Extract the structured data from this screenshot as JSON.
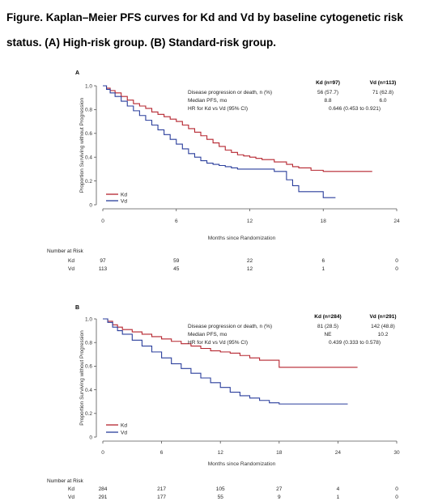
{
  "figure_title": "Figure. Kaplan–Meier PFS curves for Kd and Vd by baseline cytogenetic risk status. (A) High-risk group. (B) Standard-risk group.",
  "colors": {
    "kd": "#b5242e",
    "vd": "#2a3e9c",
    "axis": "#555555"
  },
  "chart_data": [
    {
      "type": "line",
      "panel_label": "A",
      "title": "",
      "xlabel": "Months since Randomization",
      "ylabel": "Proportion Surviving without Progression",
      "xlim": [
        0,
        24
      ],
      "ylim": [
        0,
        1.0
      ],
      "x_ticks": [
        "0",
        "6",
        "12",
        "18",
        "24"
      ],
      "y_ticks": [
        "0",
        "0.2",
        "0.4",
        "0.6",
        "0.8",
        "1.0"
      ],
      "grid": false,
      "legend": {
        "position": "bottom-left",
        "entries": [
          "Kd",
          "Vd"
        ]
      },
      "stats_table": {
        "col_headers": [
          "Kd (n=97)",
          "Vd (n=113)"
        ],
        "rows": [
          {
            "label": "Disease progression or death, n (%)",
            "kd": "56 (57.7)",
            "vd": "71 (62.8)"
          },
          {
            "label": "Median PFS, mo",
            "kd": "8.8",
            "vd": "6.0"
          },
          {
            "label": "HR for Kd vs Vd (95% CI)",
            "span": "0.646 (0.453 to 0.921)"
          }
        ]
      },
      "series": [
        {
          "name": "Kd",
          "step": true,
          "x": [
            0,
            0.3,
            0.6,
            1.0,
            1.5,
            2.0,
            2.5,
            3.0,
            3.5,
            4.0,
            4.5,
            5.0,
            5.5,
            6.0,
            6.5,
            7.0,
            7.5,
            8.0,
            8.5,
            9.0,
            9.5,
            10.0,
            10.5,
            11.0,
            11.5,
            12.0,
            12.5,
            13.0,
            14.0,
            15.0,
            15.5,
            16.0,
            17.0,
            18.0,
            19.0,
            20.0,
            21.0,
            22.0
          ],
          "y": [
            1.0,
            0.98,
            0.96,
            0.94,
            0.91,
            0.88,
            0.85,
            0.83,
            0.81,
            0.78,
            0.76,
            0.74,
            0.72,
            0.7,
            0.67,
            0.64,
            0.61,
            0.58,
            0.55,
            0.52,
            0.49,
            0.46,
            0.44,
            0.42,
            0.41,
            0.4,
            0.39,
            0.38,
            0.36,
            0.34,
            0.32,
            0.31,
            0.29,
            0.28,
            0.28,
            0.28,
            0.28,
            0.28
          ]
        },
        {
          "name": "Vd",
          "step": true,
          "x": [
            0,
            0.3,
            0.6,
            1.0,
            1.5,
            2.0,
            2.5,
            3.0,
            3.5,
            4.0,
            4.5,
            5.0,
            5.5,
            6.0,
            6.5,
            7.0,
            7.5,
            8.0,
            8.5,
            9.0,
            9.5,
            10.0,
            10.5,
            11.0,
            12.0,
            13.0,
            14.0,
            15.0,
            15.5,
            16.0,
            17.0,
            18.0,
            19.0
          ],
          "y": [
            1.0,
            0.97,
            0.94,
            0.91,
            0.87,
            0.83,
            0.79,
            0.75,
            0.71,
            0.67,
            0.63,
            0.59,
            0.55,
            0.51,
            0.47,
            0.43,
            0.4,
            0.37,
            0.35,
            0.34,
            0.33,
            0.32,
            0.31,
            0.3,
            0.3,
            0.3,
            0.28,
            0.21,
            0.16,
            0.11,
            0.11,
            0.06,
            0.06
          ]
        }
      ],
      "number_at_risk": {
        "heading": "Number at Risk",
        "rows": [
          {
            "label": "Kd",
            "values": [
              "97",
              "59",
              "22",
              "6",
              "0"
            ]
          },
          {
            "label": "Vd",
            "values": [
              "113",
              "45",
              "12",
              "1",
              "0"
            ]
          }
        ]
      }
    },
    {
      "type": "line",
      "panel_label": "B",
      "title": "",
      "xlabel": "Months since Randomization",
      "ylabel": "Proportion Surviving without Progression",
      "xlim": [
        0,
        30
      ],
      "ylim": [
        0,
        1.0
      ],
      "x_ticks": [
        "0",
        "6",
        "12",
        "18",
        "24",
        "30"
      ],
      "y_ticks": [
        "0",
        "0.2",
        "0.4",
        "0.6",
        "0.8",
        "1.0"
      ],
      "grid": false,
      "legend": {
        "position": "bottom-left",
        "entries": [
          "Kd",
          "Vd"
        ]
      },
      "stats_table": {
        "col_headers": [
          "Kd (n=284)",
          "Vd (n=291)"
        ],
        "rows": [
          {
            "label": "Disease progression or death, n (%)",
            "kd": "81 (28.5)",
            "vd": "142 (48.8)"
          },
          {
            "label": "Median PFS, mo",
            "kd": "NE",
            "vd": "10.2"
          },
          {
            "label": "HR for Kd vs Vd (95% CI)",
            "span": "0.439 (0.333 to 0.578)"
          }
        ]
      },
      "series": [
        {
          "name": "Kd",
          "step": true,
          "x": [
            0,
            0.5,
            1.0,
            1.5,
            2.0,
            3.0,
            4.0,
            5.0,
            6.0,
            7.0,
            8.0,
            9.0,
            10.0,
            11.0,
            12.0,
            13.0,
            14.0,
            15.0,
            16.0,
            17.0,
            18.0,
            19.0,
            20.0,
            22.0,
            24.0,
            26.0
          ],
          "y": [
            1.0,
            0.98,
            0.95,
            0.93,
            0.91,
            0.89,
            0.87,
            0.85,
            0.83,
            0.81,
            0.79,
            0.77,
            0.75,
            0.73,
            0.72,
            0.71,
            0.69,
            0.67,
            0.65,
            0.65,
            0.59,
            0.59,
            0.59,
            0.59,
            0.59,
            0.59
          ]
        },
        {
          "name": "Vd",
          "step": true,
          "x": [
            0,
            0.5,
            1.0,
            1.5,
            2.0,
            3.0,
            4.0,
            5.0,
            6.0,
            7.0,
            8.0,
            9.0,
            10.0,
            11.0,
            12.0,
            13.0,
            14.0,
            15.0,
            16.0,
            17.0,
            18.0,
            20.0,
            22.0,
            24.0,
            25.0
          ],
          "y": [
            1.0,
            0.97,
            0.93,
            0.9,
            0.87,
            0.82,
            0.77,
            0.72,
            0.67,
            0.62,
            0.58,
            0.54,
            0.5,
            0.46,
            0.42,
            0.38,
            0.35,
            0.33,
            0.31,
            0.29,
            0.28,
            0.28,
            0.28,
            0.28,
            0.28
          ]
        }
      ],
      "number_at_risk": {
        "heading": "Number at Risk",
        "rows": [
          {
            "label": "Kd",
            "values": [
              "284",
              "217",
              "105",
              "27",
              "4",
              "0"
            ]
          },
          {
            "label": "Vd",
            "values": [
              "291",
              "177",
              "55",
              "9",
              "1",
              "0"
            ]
          }
        ]
      }
    }
  ]
}
